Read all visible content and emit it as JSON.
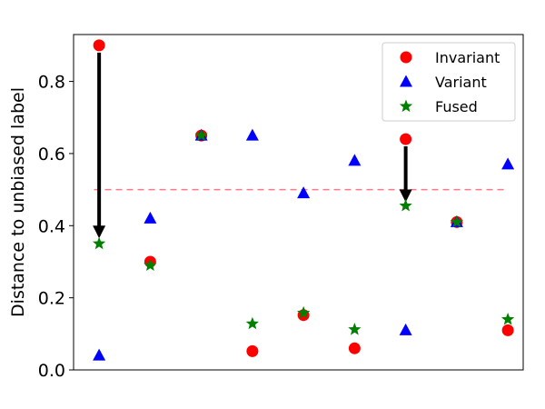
{
  "chart_data": {
    "type": "scatter",
    "ylabel": "Distance to unbiased label",
    "xlabel": "",
    "title": "",
    "ylim": [
      0,
      0.93
    ],
    "xlim": [
      0.5,
      9.3
    ],
    "yticks": [
      0.0,
      0.2,
      0.4,
      0.6,
      0.8
    ],
    "ytick_labels": [
      "0.0",
      "0.2",
      "0.4",
      "0.6",
      "0.8"
    ],
    "grid": false,
    "legend_position": "top-right",
    "threshold": {
      "y": 0.5,
      "x_start": 0.9,
      "x_end": 9.0,
      "color": "#ff7788",
      "style": "dashed"
    },
    "series": [
      {
        "name": "Invariant",
        "marker": "circle",
        "color": "#ff0000",
        "x": [
          1,
          2,
          3,
          4,
          5,
          6,
          7,
          8,
          9
        ],
        "y": [
          0.9,
          0.3,
          0.65,
          0.052,
          0.152,
          0.06,
          0.64,
          0.41,
          0.11
        ]
      },
      {
        "name": "Variant",
        "marker": "triangle",
        "color": "#0000ff",
        "x": [
          1,
          2,
          3,
          4,
          5,
          6,
          7,
          8,
          9
        ],
        "y": [
          0.04,
          0.42,
          0.65,
          0.65,
          0.49,
          0.58,
          0.11,
          0.41,
          0.57
        ]
      },
      {
        "name": "Fused",
        "marker": "star",
        "color": "#008000",
        "x": [
          1,
          2,
          3,
          4,
          5,
          6,
          7,
          8,
          9
        ],
        "y": [
          0.35,
          0.29,
          0.65,
          0.128,
          0.158,
          0.112,
          0.455,
          0.41,
          0.14
        ]
      }
    ],
    "arrows": [
      {
        "x": 1,
        "y_from": 0.88,
        "y_to": 0.37,
        "color": "#000000"
      },
      {
        "x": 7,
        "y_from": 0.62,
        "y_to": 0.47,
        "color": "#000000"
      }
    ]
  }
}
